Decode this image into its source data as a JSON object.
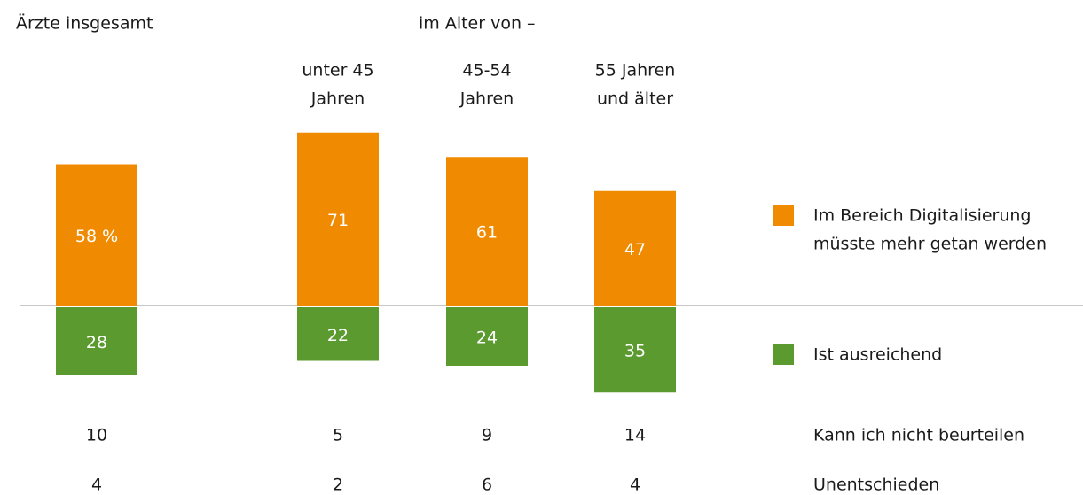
{
  "chart_data": {
    "type": "bar",
    "group_label": "im Alter von –",
    "categories": [
      [
        "Ärzte insgesamt"
      ],
      [
        "unter 45",
        "Jahren"
      ],
      [
        "45-54",
        "Jahren"
      ],
      [
        "55 Jahren",
        "und älter"
      ]
    ],
    "series": [
      {
        "name": [
          "Im Bereich Digitalisierung",
          "müsste mehr getan werden"
        ],
        "color": "#f08a00",
        "values": [
          58,
          71,
          61,
          47
        ],
        "value_labels": [
          "58 %",
          "71",
          "61",
          "47"
        ]
      },
      {
        "name": [
          "Ist ausreichend"
        ],
        "color": "#5a9a2e",
        "values": [
          28,
          22,
          24,
          35
        ]
      },
      {
        "name": [
          "Kann ich nicht beurteilen"
        ],
        "values": [
          10,
          5,
          9,
          14
        ]
      },
      {
        "name": [
          "Unentschieden"
        ],
        "values": [
          4,
          2,
          6,
          4
        ]
      }
    ]
  }
}
